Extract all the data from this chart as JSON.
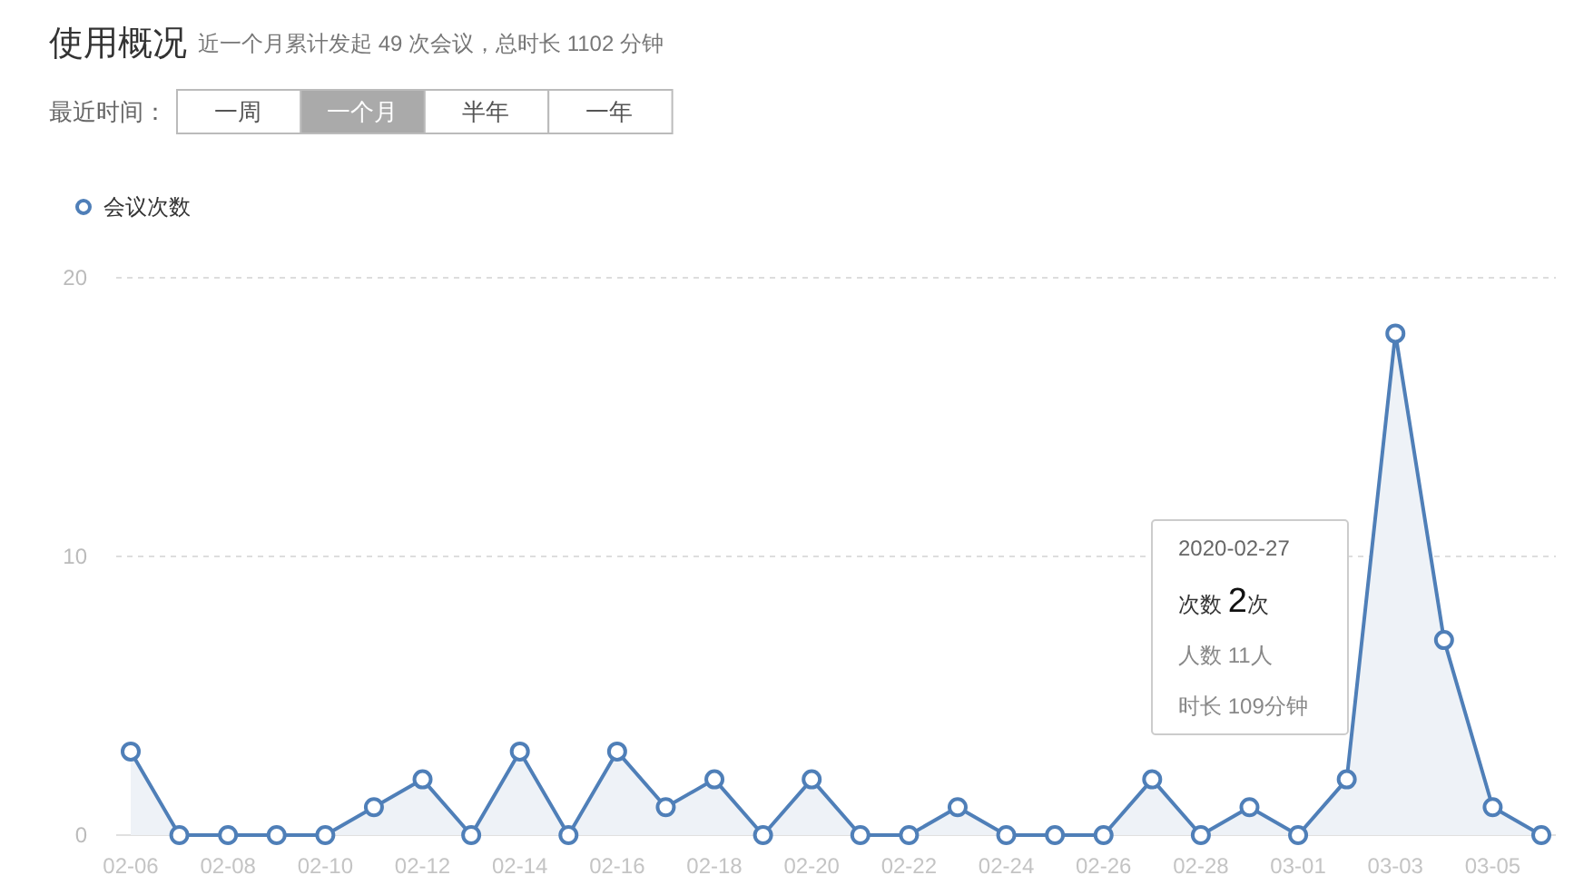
{
  "chart_data": {
    "type": "area",
    "title": "使用概况",
    "subtitle": "近一个月累计发起 49 次会议，总时长 1102 分钟",
    "categories": [
      "02-06",
      null,
      "02-08",
      null,
      "02-10",
      null,
      "02-12",
      null,
      "02-14",
      null,
      "02-16",
      null,
      "02-18",
      null,
      "02-20",
      null,
      "02-22",
      null,
      "02-24",
      null,
      "02-26",
      null,
      "02-28",
      null,
      "03-01",
      null,
      "03-03",
      null,
      "03-05",
      null
    ],
    "series": [
      {
        "name": "会议次数",
        "color": "#4f7fb8",
        "values": [
          3,
          0,
          0,
          0,
          0,
          1,
          2,
          0,
          3,
          0,
          3,
          1,
          2,
          0,
          2,
          0,
          0,
          1,
          0,
          0,
          0,
          2,
          0,
          1,
          0,
          2,
          18,
          7,
          1,
          0
        ]
      }
    ],
    "ylim": [
      0,
      20
    ],
    "yticks": [
      0,
      10,
      20
    ],
    "grid": "y",
    "legend": "top left",
    "marker": "circle",
    "annotations": [
      "最近时间：",
      "一周",
      "一个月",
      "半年",
      "一年",
      "2020-02-27",
      "次数 2次",
      "人数 11人",
      "时长 109分钟"
    ]
  }
}
